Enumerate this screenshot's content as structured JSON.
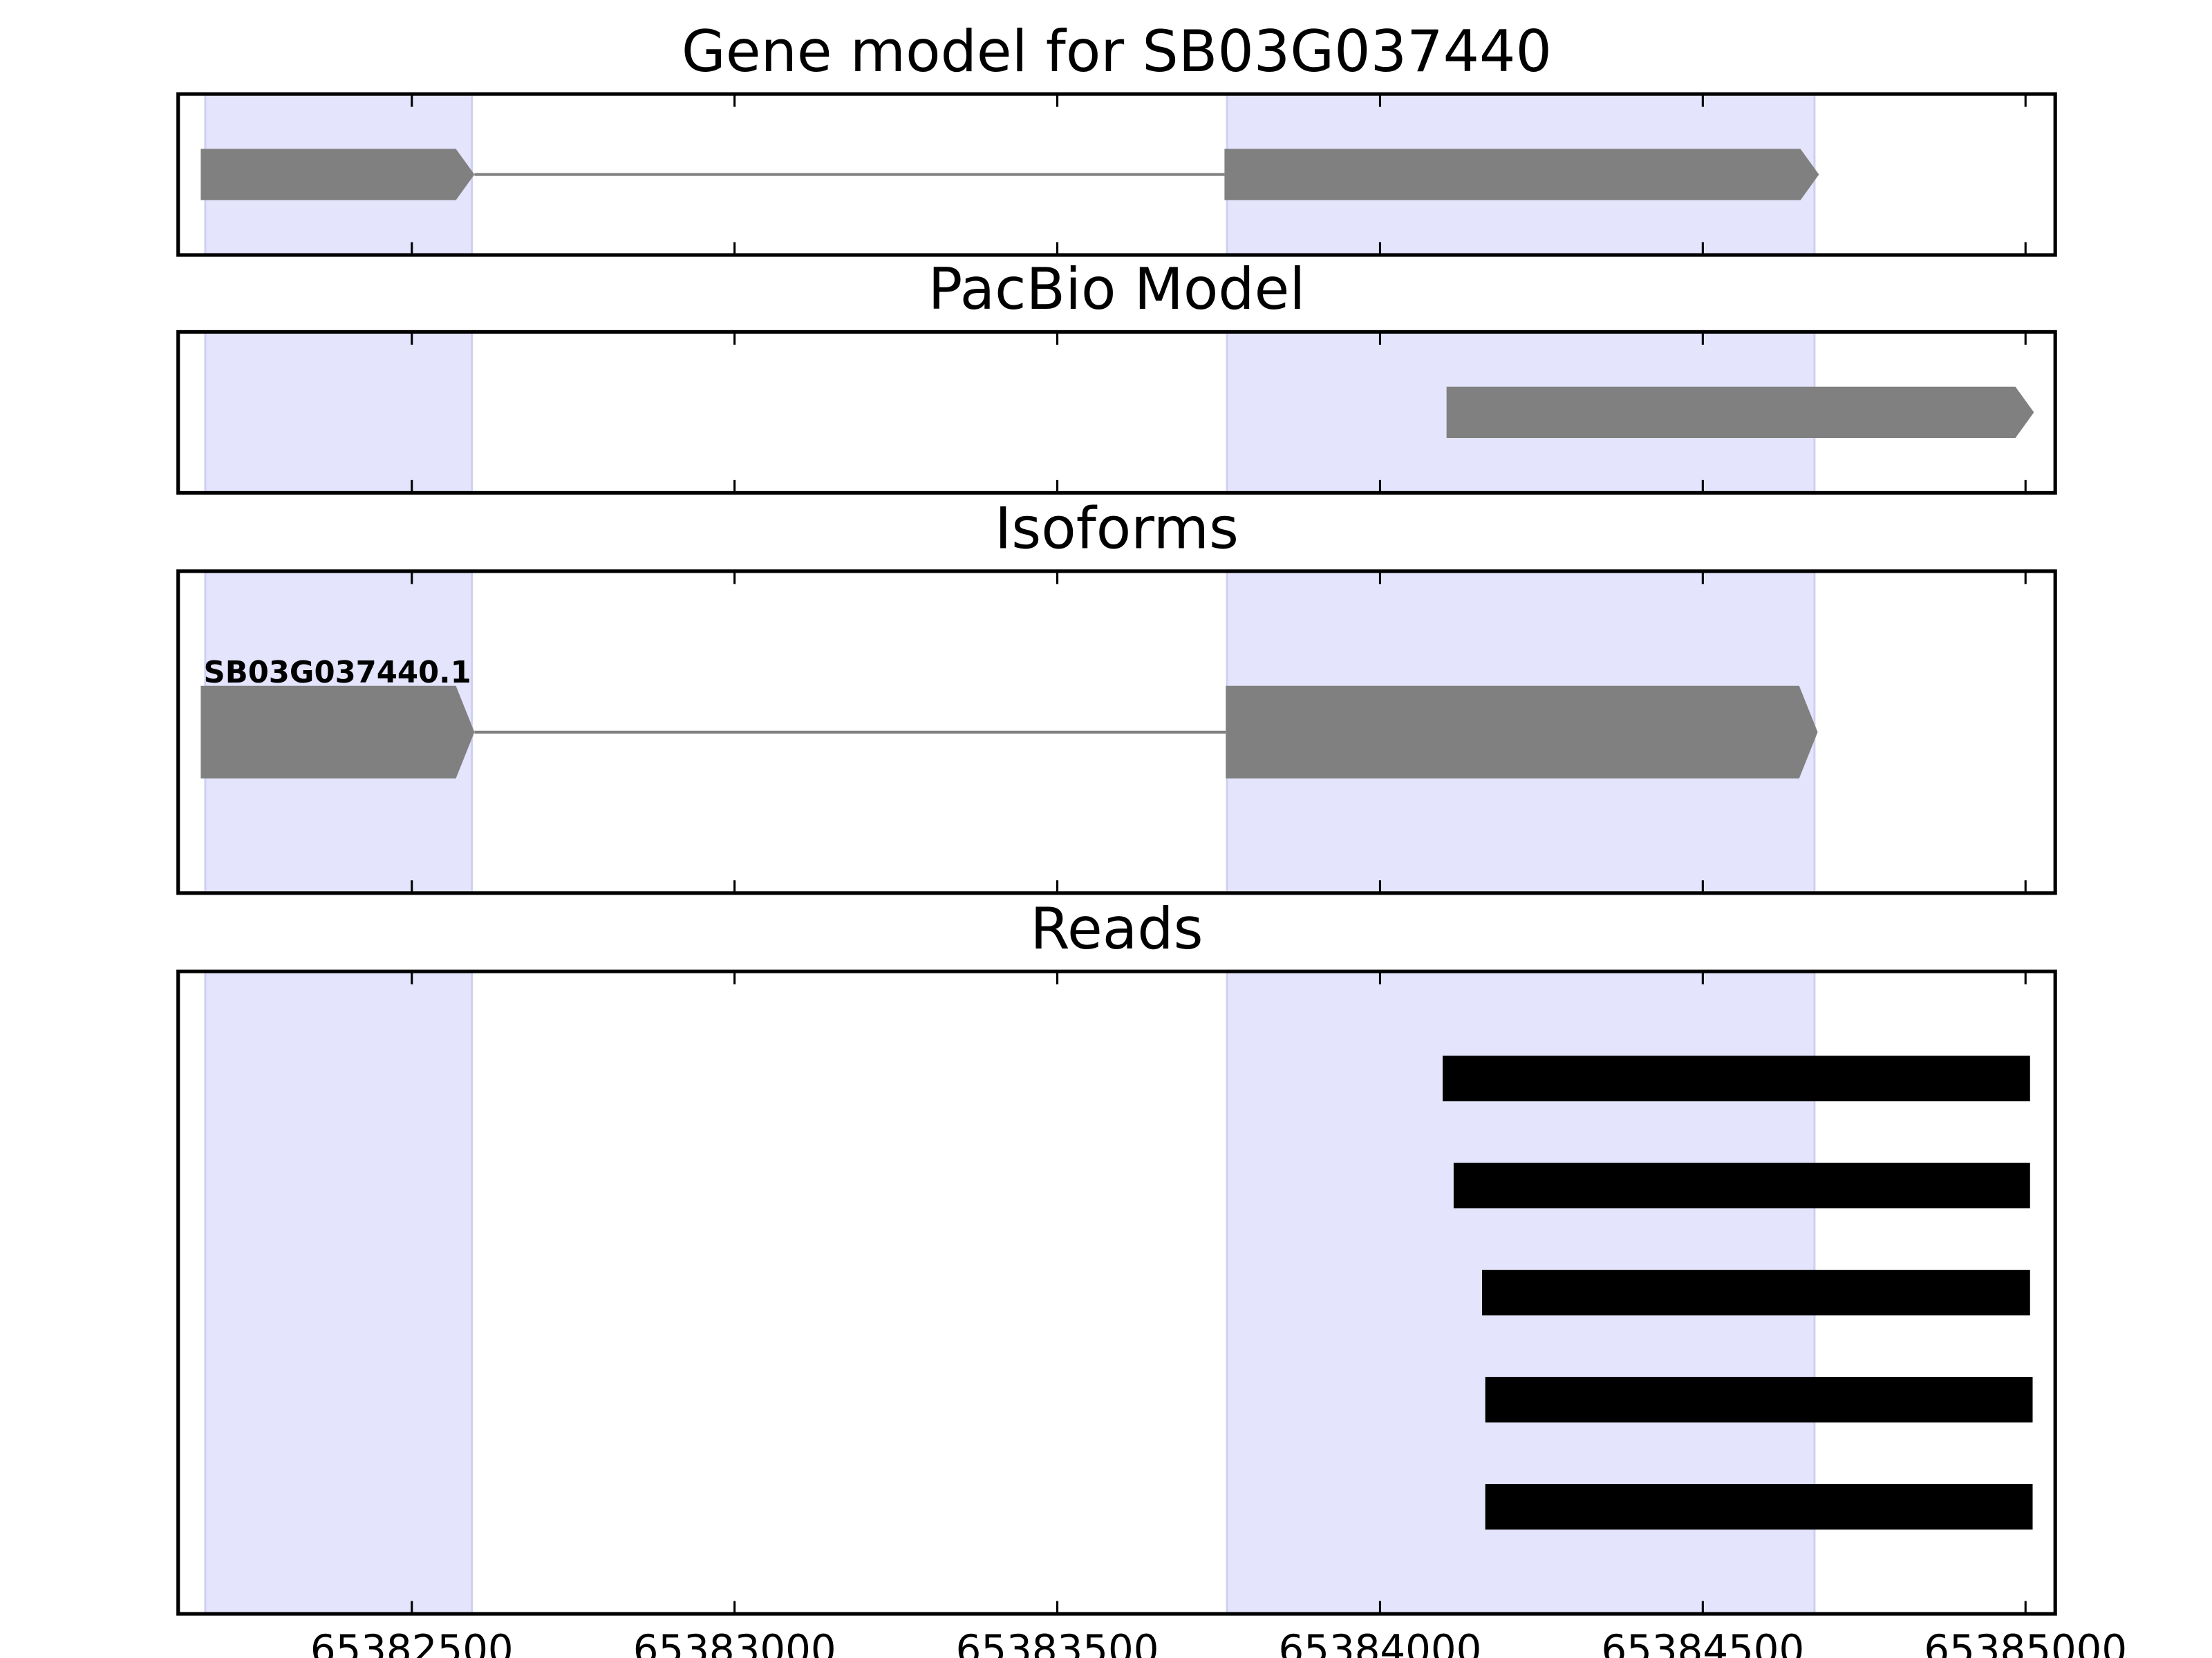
{
  "shared_x": {
    "xlim": [
      65382138,
      65385046
    ],
    "xticks": [
      65382500,
      65383000,
      65383500,
      65384000,
      65384500,
      65385000
    ]
  },
  "chart_data": [
    {
      "type": "gene",
      "title": "Gene model for SB03G037440",
      "color": "#808080",
      "highlight_color": "#e4e4fc",
      "highlight_regions": [
        [
          65382180,
          65382593
        ],
        [
          65383763,
          65384673
        ]
      ],
      "exons": [
        [
          65382173,
          65382597
        ],
        [
          65383759,
          65384680
        ]
      ]
    },
    {
      "type": "gene",
      "title": "PacBio Model",
      "color": "#808080",
      "highlight_color": "#e4e4fc",
      "highlight_regions": [
        [
          65382180,
          65382593
        ],
        [
          65383763,
          65384673
        ]
      ],
      "exons": [
        [
          65384103,
          65385013
        ]
      ]
    },
    {
      "type": "gene",
      "title": "Isoforms",
      "color": "#808080",
      "highlight_color": "#e4e4fc",
      "highlight_regions": [
        [
          65382180,
          65382593
        ],
        [
          65383763,
          65384673
        ]
      ],
      "label": "SB03G037440.1",
      "exons": [
        [
          65382173,
          65382597
        ],
        [
          65383761,
          65384678
        ]
      ]
    },
    {
      "type": "reads",
      "title": "Reads",
      "color": "#000000",
      "highlight_color": "#e4e4fc",
      "highlight_regions": [
        [
          65382180,
          65382593
        ],
        [
          65383763,
          65384673
        ]
      ],
      "reads": [
        [
          65384097,
          65385007
        ],
        [
          65384114,
          65385007
        ],
        [
          65384158,
          65385007
        ],
        [
          65384163,
          65385011
        ],
        [
          65384163,
          65385011
        ]
      ]
    }
  ]
}
